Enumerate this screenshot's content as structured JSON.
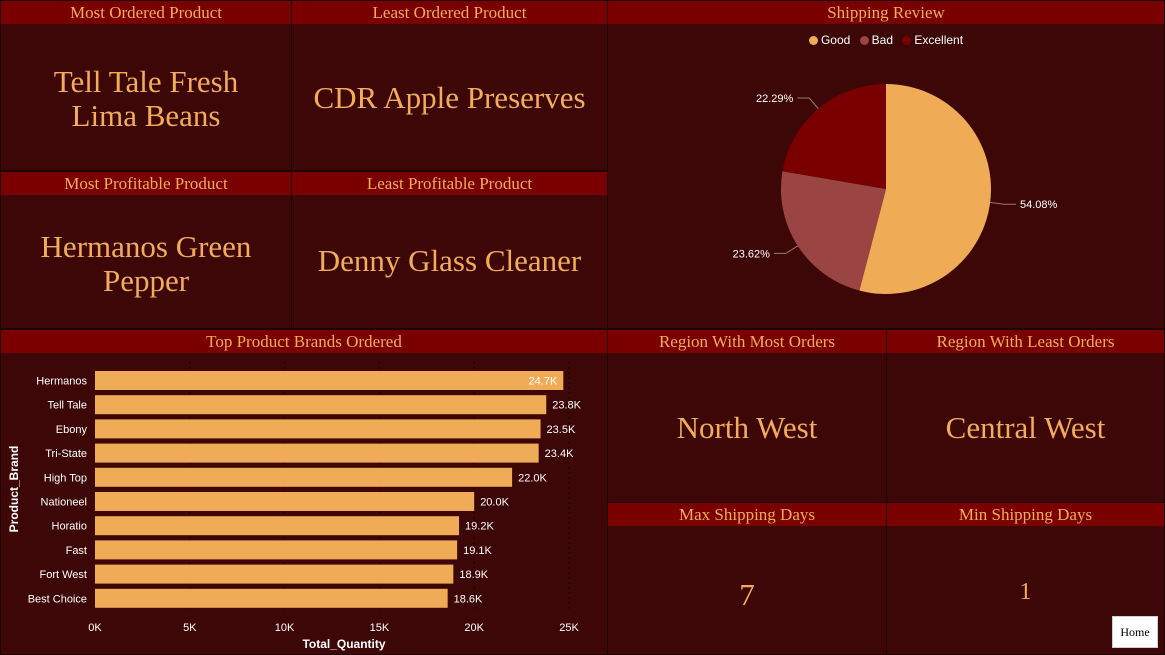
{
  "colors": {
    "background": "#3d0707",
    "header": "#7a0000",
    "accent": "#f1ad5b",
    "bar": "#f0ab56"
  },
  "cards": {
    "most_ordered": {
      "title": "Most Ordered Product",
      "value": "Tell Tale Fresh Lima Beans"
    },
    "least_ordered": {
      "title": "Least Ordered Product",
      "value": "CDR Apple Preserves"
    },
    "most_profitable": {
      "title": "Most Profitable Product",
      "value": "Hermanos Green Pepper"
    },
    "least_profitable": {
      "title": "Least Profitable Product",
      "value": "Denny Glass Cleaner"
    },
    "region_most": {
      "title": "Region With Most Orders",
      "value": "North West"
    },
    "region_least": {
      "title": "Region With Least Orders",
      "value": "Central West"
    },
    "max_shipping": {
      "title": "Max Shipping Days",
      "value": "7"
    },
    "min_shipping": {
      "title": "Min Shipping Days",
      "value": "1"
    }
  },
  "home_button": {
    "label": "Home"
  },
  "chart_data": [
    {
      "type": "pie",
      "title": "Shipping Review",
      "legend_position": "top-center",
      "series": [
        {
          "name": "Good",
          "value": 54.08,
          "label": "54.08%",
          "color": "#f0ab56"
        },
        {
          "name": "Bad",
          "value": 23.62,
          "label": "23.62%",
          "color": "#9a4444"
        },
        {
          "name": "Excellent",
          "value": 22.29,
          "label": "22.29%",
          "color": "#7a0000"
        }
      ]
    },
    {
      "type": "bar",
      "orientation": "horizontal",
      "title": "Top Product Brands Ordered",
      "xlabel": "Total_Quantity",
      "ylabel": "Product_Brand",
      "xlim": [
        0,
        25000
      ],
      "x_ticks": [
        "0K",
        "5K",
        "10K",
        "15K",
        "20K",
        "25K"
      ],
      "grid": true,
      "categories": [
        "Hermanos",
        "Tell Tale",
        "Ebony",
        "Tri-State",
        "High Top",
        "Nationeel",
        "Horatio",
        "Fast",
        "Fort West",
        "Best Choice"
      ],
      "values": [
        24700,
        23800,
        23500,
        23400,
        22000,
        20000,
        19200,
        19100,
        18900,
        18600
      ],
      "labels": [
        "24.7K",
        "23.8K",
        "23.5K",
        "23.4K",
        "22.0K",
        "20.0K",
        "19.2K",
        "19.1K",
        "18.9K",
        "18.6K"
      ]
    }
  ]
}
